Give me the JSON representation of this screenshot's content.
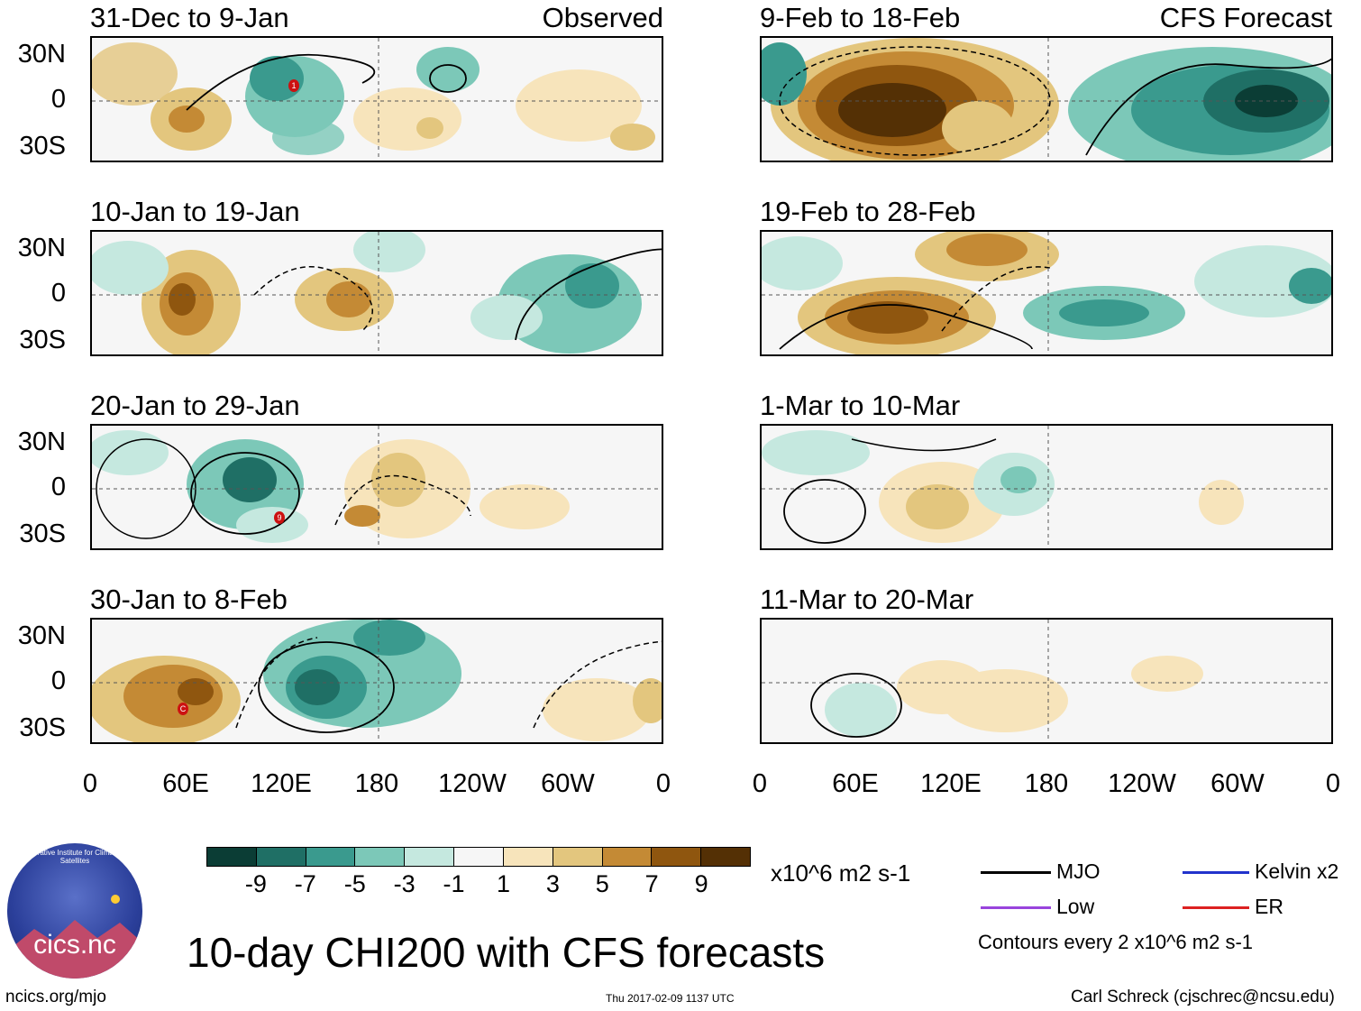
{
  "headers": {
    "observed": "Observed",
    "forecast": "CFS Forecast"
  },
  "panels": [
    {
      "title": "31-Dec to 9-Jan"
    },
    {
      "title": "10-Jan to 19-Jan"
    },
    {
      "title": "20-Jan to 29-Jan"
    },
    {
      "title": "30-Jan to 8-Feb"
    },
    {
      "title": "9-Feb to 18-Feb"
    },
    {
      "title": "19-Feb to 28-Feb"
    },
    {
      "title": "1-Mar to 10-Mar"
    },
    {
      "title": "11-Mar to 20-Mar"
    }
  ],
  "lat_labels": [
    "30N",
    "0",
    "30S"
  ],
  "lon_labels": [
    "0",
    "60E",
    "120E",
    "180",
    "120W",
    "60W",
    "0"
  ],
  "colorbar": {
    "colors": [
      "#0b3d35",
      "#1f6f65",
      "#3a9a8e",
      "#7cc8b8",
      "#c5e8df",
      "#f6f6f6",
      "#f7e4bb",
      "#e3c67e",
      "#c48a35",
      "#8f560f",
      "#543005"
    ],
    "labels": [
      "-9",
      "-7",
      "-5",
      "-3",
      "-1",
      "1",
      "3",
      "5",
      "7",
      "9"
    ],
    "units": "x10^6 m2 s-1"
  },
  "legend": {
    "items": [
      {
        "label": "MJO",
        "color": "#000000"
      },
      {
        "label": "Kelvin x2",
        "color": "#2233cc"
      },
      {
        "label": "Low",
        "color": "#9944dd"
      },
      {
        "label": "ER",
        "color": "#dd2222"
      }
    ],
    "contours_note": "Contours every 2 x10^6 m2 s-1"
  },
  "logo": {
    "text": "cics.nc",
    "ring_text": "Cooperative Institute for Climate and Satellites"
  },
  "title": "10-day CHI200 with CFS forecasts",
  "footer": {
    "left": "ncics.org/mjo",
    "center": "Thu 2017-02-09 1137 UTC",
    "right": "Carl Schreck (cjschrec@ncsu.edu)"
  },
  "storms": [
    {
      "panel": 0,
      "label": "1"
    },
    {
      "panel": 2,
      "label": "9"
    },
    {
      "panel": 3,
      "label": "C"
    }
  ]
}
